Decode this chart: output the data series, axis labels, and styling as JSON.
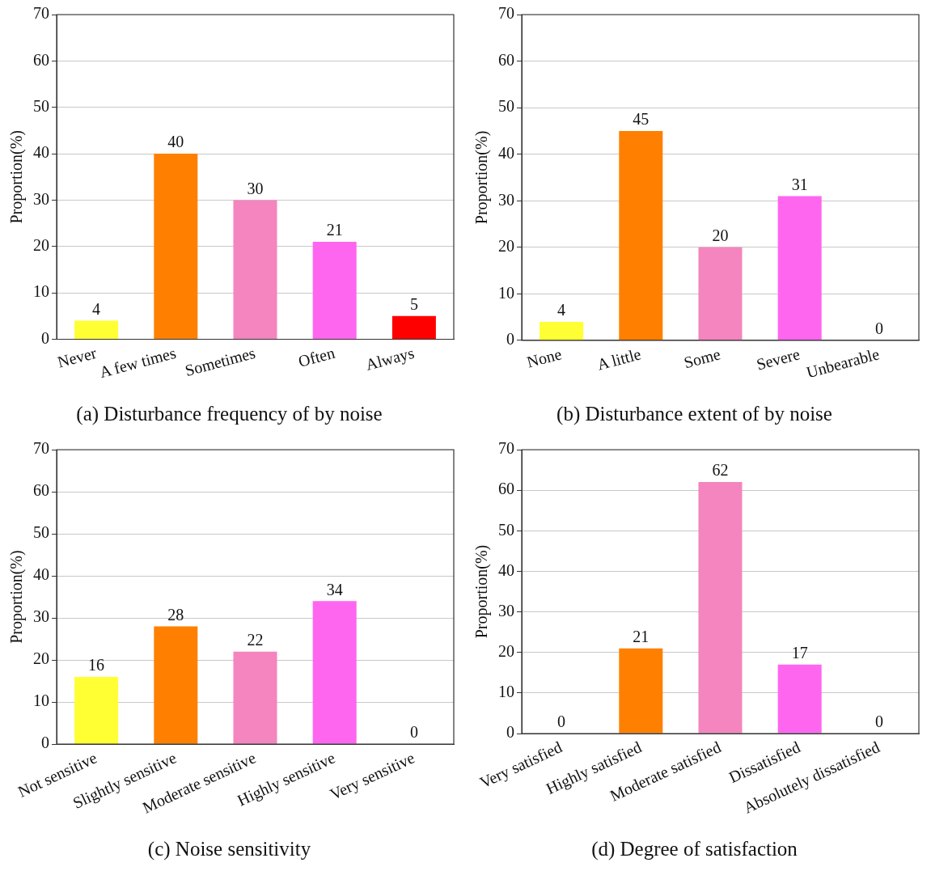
{
  "chart_data": [
    {
      "type": "bar",
      "title": "(a) Disturbance frequency of by noise",
      "ylabel": "Proportion(%)",
      "categories": [
        "Never",
        "A few times",
        "Sometimes",
        "Often",
        "Always"
      ],
      "values": [
        4,
        40,
        30,
        21,
        5
      ],
      "colors": [
        "#ffff33",
        "#ff8000",
        "#f485be",
        "#ff66f0",
        "#ff0000"
      ],
      "ylim": [
        0,
        70
      ],
      "yticks": [
        0,
        10,
        20,
        30,
        40,
        50,
        60,
        70
      ],
      "grid": "y",
      "data_labels": true
    },
    {
      "type": "bar",
      "title": "(b) Disturbance extent of by noise",
      "ylabel": "Proportion(%)",
      "categories": [
        "None",
        "A little",
        "Some",
        "Severe",
        "Unbearable"
      ],
      "values": [
        4,
        45,
        20,
        31,
        0
      ],
      "colors": [
        "#ffff33",
        "#ff8000",
        "#f485be",
        "#ff66f0",
        "#ff0000"
      ],
      "ylim": [
        0,
        70
      ],
      "yticks": [
        0,
        10,
        20,
        30,
        40,
        50,
        60,
        70
      ],
      "grid": "y",
      "data_labels": true
    },
    {
      "type": "bar",
      "title": "(c) Noise sensitivity",
      "ylabel": "Proportion(%)",
      "categories": [
        "Not sensitive",
        "Slightly sensitive",
        "Moderate sensitive",
        "Highly sensitive",
        "Very sensitive"
      ],
      "values": [
        16,
        28,
        22,
        34,
        0
      ],
      "colors": [
        "#ffff33",
        "#ff8000",
        "#f485be",
        "#ff66f0",
        "#ff0000"
      ],
      "ylim": [
        0,
        70
      ],
      "yticks": [
        0,
        10,
        20,
        30,
        40,
        50,
        60,
        70
      ],
      "grid": "y",
      "data_labels": true
    },
    {
      "type": "bar",
      "title": "(d) Degree of satisfaction",
      "ylabel": "Proportion(%)",
      "categories": [
        "Very satisfied",
        "Highly satisfied",
        "Moderate satisfied",
        "Dissatisfied",
        "Absolutely dissatisfied"
      ],
      "values": [
        0,
        21,
        62,
        17,
        0
      ],
      "colors": [
        "#ffff33",
        "#ff8000",
        "#f485be",
        "#ff66f0",
        "#ff0000"
      ],
      "ylim": [
        0,
        70
      ],
      "yticks": [
        0,
        10,
        20,
        30,
        40,
        50,
        60,
        70
      ],
      "grid": "y",
      "data_labels": true
    }
  ]
}
